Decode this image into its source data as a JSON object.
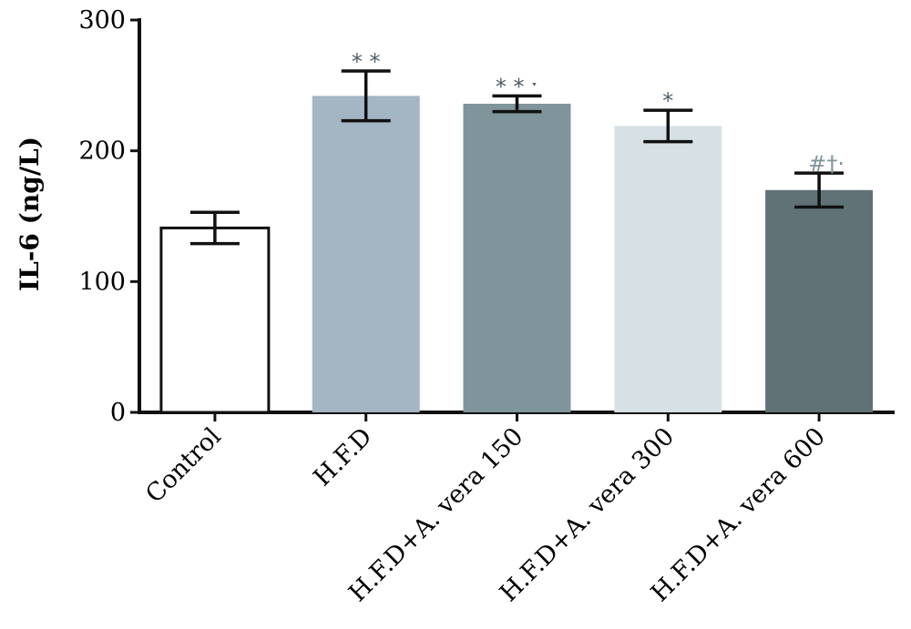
{
  "chart_data": {
    "type": "bar",
    "ylabel": "IL-6 (ng/L)",
    "xlabel": "",
    "ylim": [
      0,
      300
    ],
    "yticks": [
      0,
      100,
      200,
      300
    ],
    "grid": false,
    "legend": "none",
    "categories": [
      "Control",
      "H.F.D",
      "H.F.D+A. vera 150",
      "H.F.D+A. vera 300",
      "H.F.D+A. vera 600"
    ],
    "values": [
      141,
      242,
      236,
      219,
      170
    ],
    "error": [
      12,
      19,
      6,
      12,
      13
    ],
    "annotations": [
      "",
      "* *",
      "* * ˑ",
      "*",
      "#†·"
    ],
    "colors": [
      "#ffffff",
      "#a4b5c3",
      "#7f949b",
      "#d7e0e5",
      "#607276"
    ]
  }
}
